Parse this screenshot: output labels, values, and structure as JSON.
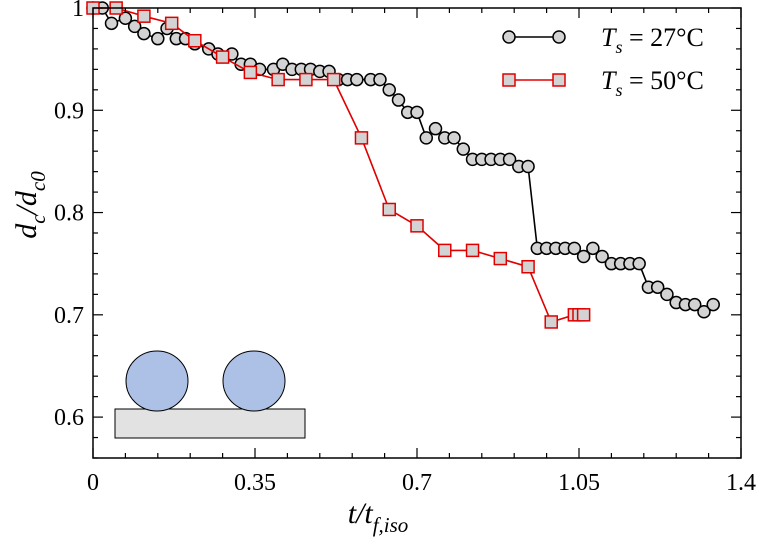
{
  "chart_data": {
    "type": "line",
    "xlabel": {
      "main": "t/t",
      "sub": "f,iso"
    },
    "ylabel": {
      "main_a": "d",
      "sub_a": "c",
      "main_b": "/d",
      "sub_b": "c0"
    },
    "xlim": [
      0,
      1.4
    ],
    "ylim": [
      0.56,
      1.0
    ],
    "x_ticks": [
      0,
      0.35,
      0.7,
      1.05,
      1.4
    ],
    "x_tick_labels": [
      "0",
      "0.35",
      "0.7",
      "1.05",
      "1.4"
    ],
    "y_ticks": [
      0.6,
      0.7,
      0.8,
      0.9,
      1.0
    ],
    "y_tick_labels": [
      "0.6",
      "0.7",
      "0.8",
      "0.9",
      "1"
    ],
    "legend_position": "top-right",
    "series": [
      {
        "name": "Ts = 27°C",
        "legend_prefix": "T",
        "legend_sub": "s",
        "legend_value": " = 27°C",
        "line_color": "#000000",
        "marker": "circle",
        "marker_fill": "#d3d3d3",
        "x": [
          0.0,
          0.02,
          0.04,
          0.07,
          0.09,
          0.11,
          0.14,
          0.16,
          0.18,
          0.2,
          0.22,
          0.25,
          0.27,
          0.3,
          0.32,
          0.34,
          0.36,
          0.39,
          0.41,
          0.43,
          0.45,
          0.47,
          0.49,
          0.51,
          0.53,
          0.55,
          0.57,
          0.6,
          0.62,
          0.64,
          0.66,
          0.68,
          0.7,
          0.72,
          0.74,
          0.76,
          0.78,
          0.8,
          0.82,
          0.84,
          0.86,
          0.88,
          0.9,
          0.92,
          0.94,
          0.96,
          0.98,
          1.0,
          1.02,
          1.04,
          1.06,
          1.08,
          1.1,
          1.12,
          1.14,
          1.16,
          1.18,
          1.2,
          1.22,
          1.24,
          1.26,
          1.28,
          1.3,
          1.32,
          1.34
        ],
        "y": [
          1.0,
          1.0,
          0.985,
          0.99,
          0.982,
          0.975,
          0.97,
          0.98,
          0.97,
          0.97,
          0.965,
          0.96,
          0.955,
          0.955,
          0.945,
          0.945,
          0.94,
          0.94,
          0.945,
          0.94,
          0.94,
          0.94,
          0.938,
          0.938,
          0.93,
          0.93,
          0.93,
          0.93,
          0.93,
          0.92,
          0.91,
          0.898,
          0.898,
          0.873,
          0.882,
          0.873,
          0.873,
          0.862,
          0.852,
          0.852,
          0.852,
          0.852,
          0.852,
          0.845,
          0.845,
          0.765,
          0.765,
          0.765,
          0.765,
          0.765,
          0.757,
          0.765,
          0.757,
          0.75,
          0.75,
          0.75,
          0.75,
          0.727,
          0.727,
          0.72,
          0.712,
          0.71,
          0.71,
          0.703,
          0.71
        ]
      },
      {
        "name": "Ts = 50°C",
        "legend_prefix": "T",
        "legend_sub": "s",
        "legend_value": " = 50°C",
        "line_color": "#e00000",
        "marker": "square",
        "marker_fill": "#d3d3d3",
        "x": [
          0.0,
          0.05,
          0.11,
          0.17,
          0.22,
          0.28,
          0.34,
          0.4,
          0.46,
          0.52,
          0.58,
          0.64,
          0.7,
          0.76,
          0.82,
          0.88,
          0.94,
          0.99,
          1.04,
          1.05,
          1.06
        ],
        "y": [
          1.0,
          1.0,
          0.992,
          0.985,
          0.968,
          0.952,
          0.937,
          0.93,
          0.93,
          0.93,
          0.873,
          0.803,
          0.787,
          0.763,
          0.763,
          0.755,
          0.747,
          0.693,
          0.7,
          0.7,
          0.7
        ]
      }
    ]
  },
  "inset": {
    "description_icon": "droplets-on-substrate-icon",
    "droplet_color": "#adc0e6",
    "substrate_color": "#e2e2e2"
  }
}
